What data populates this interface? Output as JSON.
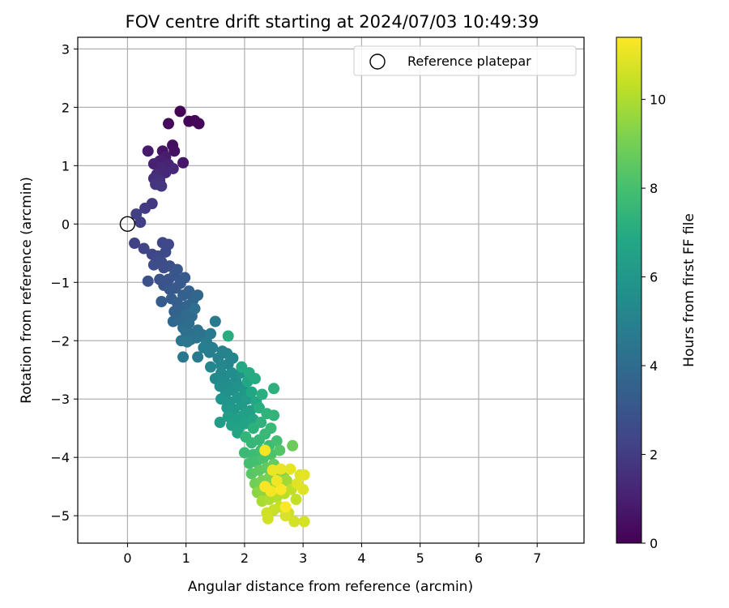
{
  "chart_data": {
    "type": "scatter",
    "title": "FOV centre drift starting at 2024/07/03 10:49:39",
    "xlabel": "Angular distance from reference (arcmin)",
    "ylabel": "Rotation from reference (arcmin)",
    "xlim": [
      -0.85,
      7.8
    ],
    "ylim": [
      -5.47,
      3.2
    ],
    "xticks": [
      0,
      1,
      2,
      3,
      4,
      5,
      6,
      7
    ],
    "yticks": [
      -5,
      -4,
      -3,
      -2,
      -1,
      0,
      1,
      2,
      3
    ],
    "xtick_labels": [
      "0",
      "1",
      "2",
      "3",
      "4",
      "5",
      "6",
      "7"
    ],
    "ytick_labels": [
      "−5",
      "−4",
      "−3",
      "−2",
      "−1",
      "0",
      "1",
      "2",
      "3"
    ],
    "grid": true,
    "legend": {
      "placement": "upper right",
      "label": "Reference platepar"
    },
    "reference_point": {
      "x": 0,
      "y": 0
    },
    "colorbar": {
      "label": "Hours from first FF file",
      "min": 0,
      "max": 11.4,
      "ticks": [
        0,
        2,
        4,
        6,
        8,
        10
      ],
      "tick_labels": [
        "0",
        "2",
        "4",
        "6",
        "8",
        "10"
      ],
      "colormap": "viridis"
    },
    "series": [
      {
        "color_by": "hours",
        "points": [
          {
            "x": 0.9,
            "y": 1.93,
            "c": 0.05
          },
          {
            "x": 1.05,
            "y": 1.76,
            "c": 0.1
          },
          {
            "x": 1.15,
            "y": 1.77,
            "c": 0.15
          },
          {
            "x": 1.22,
            "y": 1.72,
            "c": 0.2
          },
          {
            "x": 0.7,
            "y": 1.72,
            "c": 0.3
          },
          {
            "x": 0.77,
            "y": 1.35,
            "c": 0.4
          },
          {
            "x": 0.8,
            "y": 1.25,
            "c": 0.5
          },
          {
            "x": 0.6,
            "y": 1.25,
            "c": 0.6
          },
          {
            "x": 0.95,
            "y": 1.05,
            "c": 0.7
          },
          {
            "x": 0.35,
            "y": 1.25,
            "c": 0.8
          },
          {
            "x": 0.65,
            "y": 1.15,
            "c": 0.9
          },
          {
            "x": 0.55,
            "y": 1.08,
            "c": 1.0
          },
          {
            "x": 0.45,
            "y": 1.03,
            "c": 1.05
          },
          {
            "x": 0.7,
            "y": 1.02,
            "c": 1.1
          },
          {
            "x": 0.58,
            "y": 0.97,
            "c": 1.2
          },
          {
            "x": 0.78,
            "y": 0.95,
            "c": 1.25
          },
          {
            "x": 0.65,
            "y": 0.88,
            "c": 1.3
          },
          {
            "x": 0.5,
            "y": 0.85,
            "c": 1.4
          },
          {
            "x": 0.45,
            "y": 0.78,
            "c": 1.5
          },
          {
            "x": 0.55,
            "y": 0.75,
            "c": 1.6
          },
          {
            "x": 0.48,
            "y": 0.68,
            "c": 1.7
          },
          {
            "x": 0.58,
            "y": 0.65,
            "c": 1.8
          },
          {
            "x": 0.42,
            "y": 0.35,
            "c": 1.9
          },
          {
            "x": 0.3,
            "y": 0.27,
            "c": 2.0
          },
          {
            "x": 0.15,
            "y": 0.17,
            "c": 2.1
          },
          {
            "x": 0.22,
            "y": 0.03,
            "c": 2.15
          },
          {
            "x": 0.12,
            "y": -0.33,
            "c": 2.2
          },
          {
            "x": 0.28,
            "y": -0.42,
            "c": 2.3
          },
          {
            "x": 0.42,
            "y": -0.52,
            "c": 2.35
          },
          {
            "x": 0.6,
            "y": -0.32,
            "c": 2.4
          },
          {
            "x": 0.7,
            "y": -0.35,
            "c": 2.45
          },
          {
            "x": 0.52,
            "y": -0.55,
            "c": 2.5
          },
          {
            "x": 0.65,
            "y": -0.48,
            "c": 2.55
          },
          {
            "x": 0.45,
            "y": -0.7,
            "c": 2.6
          },
          {
            "x": 0.58,
            "y": -0.65,
            "c": 2.65
          },
          {
            "x": 0.62,
            "y": -0.75,
            "c": 2.7
          },
          {
            "x": 0.72,
            "y": -0.72,
            "c": 2.75
          },
          {
            "x": 0.35,
            "y": -0.98,
            "c": 2.8
          },
          {
            "x": 0.55,
            "y": -0.95,
            "c": 2.85
          },
          {
            "x": 0.62,
            "y": -1.05,
            "c": 2.9
          },
          {
            "x": 0.7,
            "y": -0.95,
            "c": 2.95
          },
          {
            "x": 0.8,
            "y": -0.88,
            "c": 3.0
          },
          {
            "x": 0.85,
            "y": -0.78,
            "c": 3.05
          },
          {
            "x": 0.72,
            "y": -1.12,
            "c": 3.1
          },
          {
            "x": 0.82,
            "y": -1.1,
            "c": 3.15
          },
          {
            "x": 0.9,
            "y": -1.02,
            "c": 3.2
          },
          {
            "x": 0.98,
            "y": -0.92,
            "c": 3.25
          },
          {
            "x": 0.58,
            "y": -1.33,
            "c": 3.3
          },
          {
            "x": 0.75,
            "y": -1.28,
            "c": 3.35
          },
          {
            "x": 0.85,
            "y": -1.35,
            "c": 3.4
          },
          {
            "x": 0.95,
            "y": -1.22,
            "c": 3.45
          },
          {
            "x": 1.05,
            "y": -1.15,
            "c": 3.5
          },
          {
            "x": 0.8,
            "y": -1.5,
            "c": 3.55
          },
          {
            "x": 0.92,
            "y": -1.48,
            "c": 3.6
          },
          {
            "x": 1.02,
            "y": -1.4,
            "c": 3.65
          },
          {
            "x": 1.12,
            "y": -1.3,
            "c": 3.7
          },
          {
            "x": 1.2,
            "y": -1.22,
            "c": 3.75
          },
          {
            "x": 0.78,
            "y": -1.67,
            "c": 3.8
          },
          {
            "x": 0.9,
            "y": -1.65,
            "c": 3.85
          },
          {
            "x": 1.0,
            "y": -1.55,
            "c": 3.9
          },
          {
            "x": 1.1,
            "y": -1.58,
            "c": 3.95
          },
          {
            "x": 1.05,
            "y": -1.7,
            "c": 4.0
          },
          {
            "x": 0.95,
            "y": -1.78,
            "c": 4.05
          },
          {
            "x": 1.15,
            "y": -1.45,
            "c": 4.1
          },
          {
            "x": 1.0,
            "y": -1.85,
            "c": 4.15
          },
          {
            "x": 1.1,
            "y": -1.88,
            "c": 4.2
          },
          {
            "x": 1.2,
            "y": -1.82,
            "c": 4.25
          },
          {
            "x": 1.08,
            "y": -1.98,
            "c": 4.3
          },
          {
            "x": 1.18,
            "y": -1.95,
            "c": 4.35
          },
          {
            "x": 1.28,
            "y": -1.9,
            "c": 4.4
          },
          {
            "x": 0.92,
            "y": -2.0,
            "c": 4.45
          },
          {
            "x": 1.02,
            "y": -2.02,
            "c": 4.5
          },
          {
            "x": 0.95,
            "y": -2.28,
            "c": 4.55
          },
          {
            "x": 1.2,
            "y": -2.28,
            "c": 4.6
          },
          {
            "x": 1.42,
            "y": -1.88,
            "c": 4.65
          },
          {
            "x": 1.5,
            "y": -1.67,
            "c": 4.7
          },
          {
            "x": 1.35,
            "y": -2.02,
            "c": 4.75
          },
          {
            "x": 1.45,
            "y": -2.12,
            "c": 4.8
          },
          {
            "x": 1.4,
            "y": -2.2,
            "c": 4.85
          },
          {
            "x": 1.3,
            "y": -2.12,
            "c": 4.9
          },
          {
            "x": 1.55,
            "y": -2.3,
            "c": 4.95
          },
          {
            "x": 1.62,
            "y": -2.18,
            "c": 5.0
          },
          {
            "x": 1.7,
            "y": -2.22,
            "c": 5.05
          },
          {
            "x": 1.72,
            "y": -2.4,
            "c": 5.1
          },
          {
            "x": 1.8,
            "y": -2.3,
            "c": 5.15
          },
          {
            "x": 1.6,
            "y": -2.42,
            "c": 5.2
          },
          {
            "x": 1.42,
            "y": -2.45,
            "c": 5.25
          },
          {
            "x": 1.6,
            "y": -2.55,
            "c": 5.3
          },
          {
            "x": 1.5,
            "y": -2.65,
            "c": 5.35
          },
          {
            "x": 1.65,
            "y": -2.65,
            "c": 5.4
          },
          {
            "x": 1.78,
            "y": -2.55,
            "c": 5.45
          },
          {
            "x": 1.58,
            "y": -2.78,
            "c": 5.5
          },
          {
            "x": 1.72,
            "y": -2.75,
            "c": 5.55
          },
          {
            "x": 1.85,
            "y": -2.68,
            "c": 5.6
          },
          {
            "x": 1.68,
            "y": -2.9,
            "c": 5.65
          },
          {
            "x": 1.8,
            "y": -2.85,
            "c": 5.7
          },
          {
            "x": 1.9,
            "y": -2.78,
            "c": 5.75
          },
          {
            "x": 1.95,
            "y": -2.55,
            "c": 5.8
          },
          {
            "x": 1.6,
            "y": -3.0,
            "c": 5.85
          },
          {
            "x": 1.75,
            "y": -3.05,
            "c": 5.9
          },
          {
            "x": 1.88,
            "y": -2.98,
            "c": 5.95
          },
          {
            "x": 2.0,
            "y": -2.85,
            "c": 6.0
          },
          {
            "x": 1.7,
            "y": -3.15,
            "c": 6.05
          },
          {
            "x": 1.82,
            "y": -3.18,
            "c": 6.1
          },
          {
            "x": 1.95,
            "y": -3.1,
            "c": 6.15
          },
          {
            "x": 2.05,
            "y": -3.0,
            "c": 6.2
          },
          {
            "x": 1.58,
            "y": -3.4,
            "c": 6.25
          },
          {
            "x": 1.72,
            "y": -3.3,
            "c": 6.3
          },
          {
            "x": 1.85,
            "y": -3.35,
            "c": 6.35
          },
          {
            "x": 1.98,
            "y": -3.28,
            "c": 6.4
          },
          {
            "x": 2.1,
            "y": -3.2,
            "c": 6.45
          },
          {
            "x": 1.78,
            "y": -3.45,
            "c": 6.5
          },
          {
            "x": 1.9,
            "y": -3.5,
            "c": 6.55
          },
          {
            "x": 2.02,
            "y": -3.42,
            "c": 6.6
          },
          {
            "x": 1.88,
            "y": -3.58,
            "c": 6.65
          },
          {
            "x": 2.15,
            "y": -3.35,
            "c": 6.7
          },
          {
            "x": 2.05,
            "y": -2.7,
            "c": 6.75
          },
          {
            "x": 2.12,
            "y": -2.88,
            "c": 6.8
          },
          {
            "x": 2.2,
            "y": -3.05,
            "c": 6.85
          },
          {
            "x": 1.95,
            "y": -2.45,
            "c": 6.9
          },
          {
            "x": 2.08,
            "y": -2.55,
            "c": 6.95
          },
          {
            "x": 2.18,
            "y": -2.65,
            "c": 7.0
          },
          {
            "x": 1.72,
            "y": -1.92,
            "c": 7.05
          },
          {
            "x": 2.25,
            "y": -3.15,
            "c": 7.1
          },
          {
            "x": 2.3,
            "y": -2.92,
            "c": 7.15
          },
          {
            "x": 2.5,
            "y": -2.82,
            "c": 7.2
          },
          {
            "x": 2.15,
            "y": -3.5,
            "c": 7.25
          },
          {
            "x": 2.28,
            "y": -3.4,
            "c": 7.3
          },
          {
            "x": 2.38,
            "y": -3.25,
            "c": 7.35
          },
          {
            "x": 2.5,
            "y": -3.28,
            "c": 7.4
          },
          {
            "x": 2.02,
            "y": -3.65,
            "c": 7.45
          },
          {
            "x": 2.12,
            "y": -3.75,
            "c": 7.5
          },
          {
            "x": 2.25,
            "y": -3.7,
            "c": 7.55
          },
          {
            "x": 2.35,
            "y": -3.6,
            "c": 7.6
          },
          {
            "x": 2.45,
            "y": -3.5,
            "c": 7.65
          },
          {
            "x": 2.0,
            "y": -3.92,
            "c": 7.7
          },
          {
            "x": 2.15,
            "y": -3.95,
            "c": 7.75
          },
          {
            "x": 2.28,
            "y": -3.88,
            "c": 7.8
          },
          {
            "x": 2.42,
            "y": -3.8,
            "c": 7.85
          },
          {
            "x": 2.55,
            "y": -3.72,
            "c": 7.9
          },
          {
            "x": 2.08,
            "y": -4.1,
            "c": 7.95
          },
          {
            "x": 2.2,
            "y": -4.08,
            "c": 8.0
          },
          {
            "x": 2.32,
            "y": -4.02,
            "c": 8.1
          },
          {
            "x": 2.45,
            "y": -3.95,
            "c": 8.2
          },
          {
            "x": 2.6,
            "y": -3.88,
            "c": 8.3
          },
          {
            "x": 2.12,
            "y": -4.28,
            "c": 8.4
          },
          {
            "x": 2.25,
            "y": -4.22,
            "c": 8.5
          },
          {
            "x": 2.38,
            "y": -4.18,
            "c": 8.6
          },
          {
            "x": 2.5,
            "y": -4.12,
            "c": 8.7
          },
          {
            "x": 2.82,
            "y": -3.8,
            "c": 8.8
          },
          {
            "x": 2.18,
            "y": -4.45,
            "c": 8.9
          },
          {
            "x": 2.3,
            "y": -4.4,
            "c": 9.0
          },
          {
            "x": 2.42,
            "y": -4.35,
            "c": 9.1
          },
          {
            "x": 2.55,
            "y": -4.3,
            "c": 9.2
          },
          {
            "x": 2.68,
            "y": -4.25,
            "c": 9.3
          },
          {
            "x": 2.22,
            "y": -4.6,
            "c": 9.4
          },
          {
            "x": 2.35,
            "y": -4.58,
            "c": 9.5
          },
          {
            "x": 2.48,
            "y": -4.52,
            "c": 9.6
          },
          {
            "x": 2.6,
            "y": -4.45,
            "c": 9.7
          },
          {
            "x": 2.72,
            "y": -4.4,
            "c": 9.8
          },
          {
            "x": 2.3,
            "y": -4.75,
            "c": 9.9
          },
          {
            "x": 2.42,
            "y": -4.72,
            "c": 10.0
          },
          {
            "x": 2.55,
            "y": -4.68,
            "c": 10.1
          },
          {
            "x": 2.68,
            "y": -4.62,
            "c": 10.2
          },
          {
            "x": 2.8,
            "y": -4.55,
            "c": 10.3
          },
          {
            "x": 2.88,
            "y": -4.72,
            "c": 10.35
          },
          {
            "x": 2.6,
            "y": -4.85,
            "c": 10.4
          },
          {
            "x": 2.5,
            "y": -4.9,
            "c": 10.45
          },
          {
            "x": 2.75,
            "y": -4.95,
            "c": 10.5
          },
          {
            "x": 2.38,
            "y": -4.95,
            "c": 10.55
          },
          {
            "x": 2.4,
            "y": -5.05,
            "c": 10.6
          },
          {
            "x": 2.85,
            "y": -5.1,
            "c": 10.65
          },
          {
            "x": 3.02,
            "y": -5.1,
            "c": 10.7
          },
          {
            "x": 2.7,
            "y": -5.0,
            "c": 10.75
          },
          {
            "x": 2.95,
            "y": -4.3,
            "c": 10.8
          },
          {
            "x": 3.0,
            "y": -4.55,
            "c": 10.85
          },
          {
            "x": 2.9,
            "y": -4.45,
            "c": 10.9
          },
          {
            "x": 3.02,
            "y": -4.3,
            "c": 10.95
          },
          {
            "x": 2.78,
            "y": -4.2,
            "c": 11.0
          },
          {
            "x": 2.62,
            "y": -4.2,
            "c": 11.05
          },
          {
            "x": 2.48,
            "y": -4.22,
            "c": 11.1
          },
          {
            "x": 2.55,
            "y": -4.4,
            "c": 11.15
          },
          {
            "x": 2.45,
            "y": -4.58,
            "c": 11.2
          },
          {
            "x": 2.35,
            "y": -3.88,
            "c": 11.25
          },
          {
            "x": 2.35,
            "y": -4.5,
            "c": 11.3
          },
          {
            "x": 2.7,
            "y": -4.85,
            "c": 11.35
          },
          {
            "x": 2.62,
            "y": -4.55,
            "c": 11.38
          }
        ]
      }
    ]
  }
}
